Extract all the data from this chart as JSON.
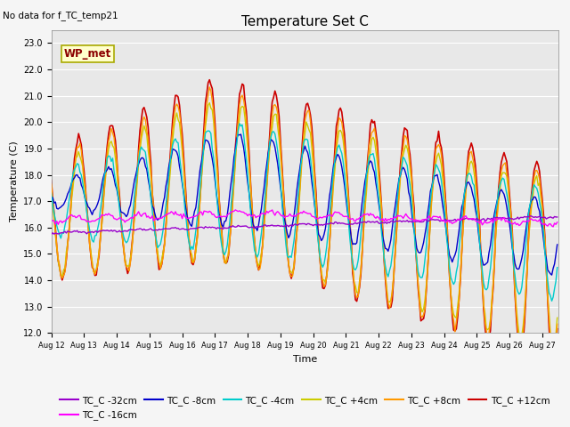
{
  "title": "Temperature Set C",
  "xlabel": "Time",
  "ylabel": "Temperature (C)",
  "ylim": [
    12.0,
    23.5
  ],
  "yticks": [
    12.0,
    13.0,
    14.0,
    15.0,
    16.0,
    17.0,
    18.0,
    19.0,
    20.0,
    21.0,
    22.0,
    23.0
  ],
  "note": "No data for f_TC_temp21",
  "wp_met_label": "WP_met",
  "legend_entries": [
    "TC_C -32cm",
    "TC_C -16cm",
    "TC_C -8cm",
    "TC_C -4cm",
    "TC_C +4cm",
    "TC_C +8cm",
    "TC_C +12cm"
  ],
  "legend_colors": [
    "#9900cc",
    "#ff00ff",
    "#0000cc",
    "#00cccc",
    "#cccc00",
    "#ff9900",
    "#cc0000"
  ],
  "bg_color": "#e8e8e8",
  "grid_color": "#ffffff",
  "title_fontsize": 11,
  "axis_fontsize": 8,
  "tick_fontsize": 7
}
